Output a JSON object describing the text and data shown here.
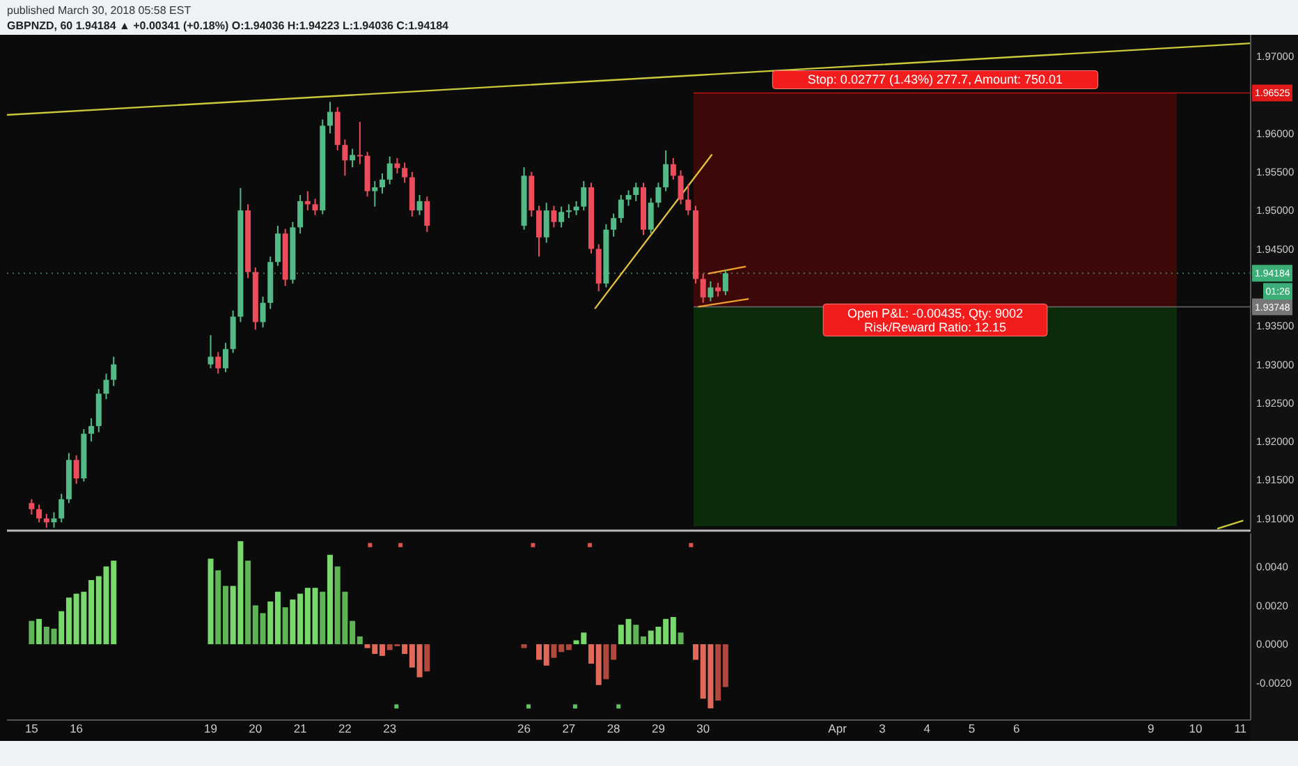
{
  "chart_data": [
    {
      "type": "candlestick",
      "title": "published March 30, 2018 05:58 EST",
      "subtitle": "GBPNZD, 60 1.94184 ▲ +0.00341 (+0.18%) O:1.94036 H:1.94223 L:1.94036 C:1.94184",
      "x": [
        "2018-03-15T00:00",
        "2018-03-15T04:00",
        "2018-03-15T08:00",
        "2018-03-15T12:00",
        "2018-03-15T16:00",
        "2018-03-15T20:00",
        "2018-03-16T00:00",
        "2018-03-16T04:00",
        "2018-03-16T08:00",
        "2018-03-16T12:00",
        "2018-03-16T16:00",
        "2018-03-16T20:00",
        "2018-03-19T00:00",
        "2018-03-19T04:00",
        "2018-03-19T08:00",
        "2018-03-19T12:00",
        "2018-03-19T16:00",
        "2018-03-19T20:00",
        "2018-03-20T00:00",
        "2018-03-20T04:00",
        "2018-03-20T08:00",
        "2018-03-20T12:00",
        "2018-03-20T16:00",
        "2018-03-20T20:00",
        "2018-03-21T00:00",
        "2018-03-21T04:00",
        "2018-03-21T08:00",
        "2018-03-21T12:00",
        "2018-03-21T16:00",
        "2018-03-21T20:00",
        "2018-03-22T00:00",
        "2018-03-22T04:00",
        "2018-03-22T08:00",
        "2018-03-22T12:00",
        "2018-03-22T16:00",
        "2018-03-22T20:00",
        "2018-03-23T00:00",
        "2018-03-23T04:00",
        "2018-03-23T08:00",
        "2018-03-23T12:00",
        "2018-03-23T16:00",
        "2018-03-23T20:00",
        "2018-03-26T00:00",
        "2018-03-26T04:00",
        "2018-03-26T08:00",
        "2018-03-26T12:00",
        "2018-03-26T16:00",
        "2018-03-26T20:00",
        "2018-03-27T00:00",
        "2018-03-27T04:00",
        "2018-03-27T08:00",
        "2018-03-27T12:00",
        "2018-03-27T16:00",
        "2018-03-27T20:00",
        "2018-03-28T00:00",
        "2018-03-28T04:00",
        "2018-03-28T08:00",
        "2018-03-28T12:00",
        "2018-03-28T16:00",
        "2018-03-28T20:00",
        "2018-03-29T00:00",
        "2018-03-29T04:00",
        "2018-03-29T08:00",
        "2018-03-29T12:00",
        "2018-03-29T16:00",
        "2018-03-29T20:00",
        "2018-03-30T00:00",
        "2018-03-30T04:00",
        "2018-03-30T08:00",
        "2018-03-30T12:00"
      ],
      "ohlc": [
        [
          1.912,
          1.9125,
          1.9105,
          1.9112
        ],
        [
          1.9112,
          1.9118,
          1.9095,
          1.91
        ],
        [
          1.91,
          1.9106,
          1.9088,
          1.9095
        ],
        [
          1.9095,
          1.9108,
          1.9088,
          1.91
        ],
        [
          1.91,
          1.9132,
          1.9095,
          1.9125
        ],
        [
          1.9125,
          1.9185,
          1.912,
          1.9176
        ],
        [
          1.9176,
          1.9182,
          1.9145,
          1.9152
        ],
        [
          1.9152,
          1.9216,
          1.9148,
          1.921
        ],
        [
          1.921,
          1.923,
          1.92,
          1.922
        ],
        [
          1.922,
          1.9268,
          1.9212,
          1.9262
        ],
        [
          1.9262,
          1.9288,
          1.9255,
          1.928
        ],
        [
          1.928,
          1.931,
          1.9272,
          1.93
        ],
        [
          1.93,
          1.9338,
          1.9295,
          1.931
        ],
        [
          1.931,
          1.9316,
          1.9288,
          1.9295
        ],
        [
          1.9295,
          1.9328,
          1.929,
          1.932
        ],
        [
          1.932,
          1.937,
          1.9315,
          1.9362
        ],
        [
          1.9362,
          1.9529,
          1.9355,
          1.95
        ],
        [
          1.95,
          1.9508,
          1.9412,
          1.942
        ],
        [
          1.942,
          1.9426,
          1.9345,
          1.9355
        ],
        [
          1.9355,
          1.9388,
          1.9348,
          1.938
        ],
        [
          1.938,
          1.944,
          1.9372,
          1.9433
        ],
        [
          1.9433,
          1.948,
          1.9428,
          1.947
        ],
        [
          1.947,
          1.9476,
          1.9402,
          1.941
        ],
        [
          1.941,
          1.9485,
          1.9405,
          1.9478
        ],
        [
          1.9478,
          1.952,
          1.947,
          1.9512
        ],
        [
          1.9512,
          1.9525,
          1.95,
          1.9508
        ],
        [
          1.9508,
          1.9515,
          1.9494,
          1.95
        ],
        [
          1.95,
          1.9618,
          1.9495,
          1.961
        ],
        [
          1.961,
          1.9641,
          1.96,
          1.9628
        ],
        [
          1.9628,
          1.9634,
          1.9578,
          1.9585
        ],
        [
          1.9585,
          1.9592,
          1.9545,
          1.9565
        ],
        [
          1.9565,
          1.958,
          1.9556,
          1.9572
        ],
        [
          1.9572,
          1.9615,
          1.956,
          1.9571
        ],
        [
          1.9571,
          1.9576,
          1.9518,
          1.9525
        ],
        [
          1.9525,
          1.9538,
          1.9505,
          1.953
        ],
        [
          1.953,
          1.9548,
          1.9522,
          1.954
        ],
        [
          1.954,
          1.957,
          1.9534,
          1.9561
        ],
        [
          1.9561,
          1.9568,
          1.9548,
          1.9555
        ],
        [
          1.9555,
          1.9562,
          1.9536,
          1.9543
        ],
        [
          1.9543,
          1.955,
          1.9492,
          1.95
        ],
        [
          1.95,
          1.952,
          1.9494,
          1.9512
        ],
        [
          1.9512,
          1.9518,
          1.9472,
          1.948
        ],
        [
          1.948,
          1.9556,
          1.9475,
          1.9545
        ],
        [
          1.9545,
          1.955,
          1.9492,
          1.95
        ],
        [
          1.95,
          1.9506,
          1.944,
          1.9465
        ],
        [
          1.9465,
          1.951,
          1.9458,
          1.95
        ],
        [
          1.95,
          1.9506,
          1.9478,
          1.9485
        ],
        [
          1.9485,
          1.9505,
          1.9478,
          1.9498
        ],
        [
          1.9498,
          1.9508,
          1.949,
          1.95
        ],
        [
          1.95,
          1.9512,
          1.9494,
          1.9505
        ],
        [
          1.9505,
          1.9538,
          1.95,
          1.953
        ],
        [
          1.953,
          1.9536,
          1.9444,
          1.945
        ],
        [
          1.945,
          1.9456,
          1.9395,
          1.9405
        ],
        [
          1.9405,
          1.9482,
          1.94,
          1.9475
        ],
        [
          1.9475,
          1.9496,
          1.9466,
          1.949
        ],
        [
          1.949,
          1.952,
          1.9484,
          1.9514
        ],
        [
          1.9514,
          1.9526,
          1.9506,
          1.952
        ],
        [
          1.952,
          1.9536,
          1.9512,
          1.953
        ],
        [
          1.953,
          1.9536,
          1.9468,
          1.9475
        ],
        [
          1.9475,
          1.9516,
          1.947,
          1.951
        ],
        [
          1.951,
          1.9536,
          1.9504,
          1.953
        ],
        [
          1.953,
          1.9578,
          1.9525,
          1.956
        ],
        [
          1.956,
          1.9568,
          1.954,
          1.9545
        ],
        [
          1.9545,
          1.9552,
          1.9508,
          1.9514
        ],
        [
          1.9514,
          1.9534,
          1.9494,
          1.95
        ],
        [
          1.95,
          1.9506,
          1.9405,
          1.9411
        ],
        [
          1.9411,
          1.9418,
          1.938,
          1.9387
        ],
        [
          1.9387,
          1.9408,
          1.9382,
          1.94
        ],
        [
          1.94,
          1.9406,
          1.9388,
          1.9395
        ],
        [
          1.9395,
          1.9423,
          1.939,
          1.94184
        ]
      ],
      "series": [
        {
          "type": "line",
          "x": [
            "2018-03-14T10:48",
            "2018-04-11T05:31"
          ],
          "values": [
            1.9624,
            1.9717
          ],
          "color": "#c9c93a"
        },
        {
          "type": "line",
          "x": [
            "2018-03-27T14:10",
            "2018-03-30T04:34"
          ],
          "values": [
            1.9373,
            1.9572
          ],
          "color": "#e3c040"
        },
        {
          "type": "line",
          "x": [
            "2018-03-30T02:53",
            "2018-03-30T22:34"
          ],
          "values": [
            1.9418,
            1.9427
          ],
          "color": "#f0a030"
        },
        {
          "type": "line",
          "x": [
            "2018-03-29T21:36",
            "2018-03-31T00:00"
          ],
          "values": [
            1.9375,
            1.9385
          ],
          "color": "#f0a030"
        },
        {
          "type": "line",
          "x": [
            "2018-04-10T12:00",
            "2018-04-11T01:12"
          ],
          "values": [
            1.9087,
            1.9097
          ],
          "color": "#c9c93a"
        }
      ],
      "bands": [
        {
          "axis": "y",
          "from": 1.93748,
          "to": 1.96525,
          "color": "#3c0808",
          "label": "Stop: 0.02777 (1.43%) 277.7, Amount: 750.01"
        },
        {
          "axis": "y",
          "from": 1.909,
          "to": 1.93748,
          "color": "#0b2b0b",
          "label": "Open P&L: -0.00435, Qty: 9002\nRisk/Reward Ratio: 12.15"
        }
      ],
      "ref_lines": [
        {
          "axis": "y",
          "value": 1.96525,
          "label": "1.96525",
          "color": "#e01818",
          "line_style": "solid"
        },
        {
          "axis": "y",
          "value": 1.94184,
          "label": "1.94184",
          "color": "#3cae78",
          "line_style": "dotted"
        },
        {
          "axis": "y",
          "value": 1.93748,
          "label": "1.93748",
          "color": "#777777",
          "line_style": "solid"
        }
      ],
      "annotations": [
        "01:26"
      ],
      "xlim": [
        "2018-03-14T10:48",
        "2018-04-11T05:31"
      ],
      "ylim": [
        1.9086,
        1.9728
      ],
      "yticks": [
        {
          "value": 1.91,
          "label": "1.91000"
        },
        {
          "value": 1.915,
          "label": "1.91500"
        },
        {
          "value": 1.92,
          "label": "1.92000"
        },
        {
          "value": 1.925,
          "label": "1.92500"
        },
        {
          "value": 1.93,
          "label": "1.93000"
        },
        {
          "value": 1.935,
          "label": "1.93500"
        },
        {
          "value": 1.945,
          "label": "1.94500"
        },
        {
          "value": 1.95,
          "label": "1.95000"
        },
        {
          "value": 1.955,
          "label": "1.95500"
        },
        {
          "value": 1.96,
          "label": "1.96000"
        },
        {
          "value": 1.97,
          "label": "1.97000"
        }
      ],
      "tick_labels": "y"
    },
    {
      "type": "bar",
      "x": [
        "2018-03-15T00:00",
        "2018-03-15T04:00",
        "2018-03-15T08:00",
        "2018-03-15T12:00",
        "2018-03-15T16:00",
        "2018-03-15T20:00",
        "2018-03-16T00:00",
        "2018-03-16T04:00",
        "2018-03-16T08:00",
        "2018-03-16T12:00",
        "2018-03-16T16:00",
        "2018-03-16T20:00",
        "2018-03-19T00:00",
        "2018-03-19T04:00",
        "2018-03-19T08:00",
        "2018-03-19T12:00",
        "2018-03-19T16:00",
        "2018-03-19T20:00",
        "2018-03-20T00:00",
        "2018-03-20T04:00",
        "2018-03-20T08:00",
        "2018-03-20T12:00",
        "2018-03-20T16:00",
        "2018-03-20T20:00",
        "2018-03-21T00:00",
        "2018-03-21T04:00",
        "2018-03-21T08:00",
        "2018-03-21T12:00",
        "2018-03-21T16:00",
        "2018-03-21T20:00",
        "2018-03-22T00:00",
        "2018-03-22T04:00",
        "2018-03-22T08:00",
        "2018-03-22T12:00",
        "2018-03-22T16:00",
        "2018-03-22T20:00",
        "2018-03-23T00:00",
        "2018-03-23T04:00",
        "2018-03-23T08:00",
        "2018-03-23T12:00",
        "2018-03-23T16:00",
        "2018-03-23T20:00",
        "2018-03-26T00:00",
        "2018-03-26T04:00",
        "2018-03-26T08:00",
        "2018-03-26T12:00",
        "2018-03-26T16:00",
        "2018-03-26T20:00",
        "2018-03-27T00:00",
        "2018-03-27T04:00",
        "2018-03-27T08:00",
        "2018-03-27T12:00",
        "2018-03-27T16:00",
        "2018-03-27T20:00",
        "2018-03-28T00:00",
        "2018-03-28T04:00",
        "2018-03-28T08:00",
        "2018-03-28T12:00",
        "2018-03-28T16:00",
        "2018-03-28T20:00",
        "2018-03-29T00:00",
        "2018-03-29T04:00",
        "2018-03-29T08:00",
        "2018-03-29T12:00",
        "2018-03-29T16:00",
        "2018-03-29T20:00",
        "2018-03-30T00:00",
        "2018-03-30T04:00",
        "2018-03-30T08:00",
        "2018-03-30T12:00"
      ],
      "values": [
        0.0012,
        0.0013,
        0.0009,
        0.0008,
        0.0017,
        0.0024,
        0.0026,
        0.0027,
        0.0033,
        0.0035,
        0.004,
        0.0043,
        0.0044,
        0.0038,
        0.003,
        0.003,
        0.0053,
        0.0043,
        0.002,
        0.0016,
        0.0022,
        0.0027,
        0.0019,
        0.0023,
        0.0026,
        0.0029,
        0.0029,
        0.0027,
        0.0046,
        0.004,
        0.0027,
        0.0012,
        0.0004,
        -0.0002,
        -0.0005,
        -0.0006,
        -0.0003,
        -0.0001,
        -0.0005,
        -0.0012,
        -0.0017,
        -0.0014,
        -0.0002,
        0.0,
        -0.0008,
        -0.0011,
        -0.0007,
        -0.0004,
        -0.0003,
        0.0002,
        0.0006,
        -0.001,
        -0.0021,
        -0.0018,
        -0.0008,
        0.001,
        0.0013,
        0.001,
        0.0004,
        0.0007,
        0.0009,
        0.0013,
        0.0014,
        0.0006,
        0.0,
        -0.0008,
        -0.0028,
        -0.0033,
        -0.0029,
        -0.0022
      ],
      "colors": [
        "#5fb455",
        "#76d96a",
        "#5fb455",
        "#5fb455",
        "#76d96a",
        "#76d96a",
        "#76d96a",
        "#76d96a",
        "#76d96a",
        "#76d96a",
        "#76d96a",
        "#76d96a",
        "#76d96a",
        "#5fb455",
        "#5fb455",
        "#76d96a",
        "#76d96a",
        "#5fb455",
        "#5fb455",
        "#5fb455",
        "#76d96a",
        "#76d96a",
        "#5fb455",
        "#76d96a",
        "#76d96a",
        "#76d96a",
        "#76d96a",
        "#5fb455",
        "#76d96a",
        "#5fb455",
        "#5fb455",
        "#5fb455",
        "#5fb455",
        "#e0695a",
        "#e0695a",
        "#e0695a",
        "#b0483e",
        "#b0483e",
        "#e0695a",
        "#e0695a",
        "#e0695a",
        "#b0483e",
        "#b0483e",
        "#5fb455",
        "#e0695a",
        "#e0695a",
        "#b0483e",
        "#b0483e",
        "#b0483e",
        "#76d96a",
        "#76d96a",
        "#e0695a",
        "#e0695a",
        "#b0483e",
        "#b0483e",
        "#76d96a",
        "#76d96a",
        "#5fb455",
        "#5fb455",
        "#76d96a",
        "#76d96a",
        "#76d96a",
        "#76d96a",
        "#5fb455",
        "#5fb455",
        "#e0695a",
        "#e0695a",
        "#e0695a",
        "#b0483e",
        "#b0483e"
      ],
      "series": [
        {
          "type": "scatter",
          "marker": "square",
          "x": [
            "2018-03-22T13:26",
            "2018-03-23T05:46",
            "2018-03-26T04:48",
            "2018-03-27T11:17",
            "2018-03-29T17:31"
          ],
          "values": [
            0.0051,
            0.0051,
            0.0051,
            0.0051,
            0.0051
          ],
          "color": "#e0504a"
        },
        {
          "type": "scatter",
          "marker": "square",
          "x": [
            "2018-03-23T03:36",
            "2018-03-26T02:24",
            "2018-03-27T03:22",
            "2018-03-28T02:38"
          ],
          "values": [
            -0.0032,
            -0.0032,
            -0.0032,
            -0.0032
          ],
          "color": "#5cc45c"
        }
      ],
      "xlim": [
        "2018-03-14T10:48",
        "2018-04-11T05:31"
      ],
      "xticks": [
        {
          "value": "2018-03-15",
          "label": "15"
        },
        {
          "value": "2018-03-16",
          "label": "16"
        },
        {
          "value": "2018-03-19",
          "label": "19"
        },
        {
          "value": "2018-03-20",
          "label": "20"
        },
        {
          "value": "2018-03-21",
          "label": "21"
        },
        {
          "value": "2018-03-22",
          "label": "22"
        },
        {
          "value": "2018-03-23",
          "label": "23"
        },
        {
          "value": "2018-03-26",
          "label": "26"
        },
        {
          "value": "2018-03-27",
          "label": "27"
        },
        {
          "value": "2018-03-28",
          "label": "28"
        },
        {
          "value": "2018-03-29",
          "label": "29"
        },
        {
          "value": "2018-03-30",
          "label": "30"
        },
        {
          "value": "2018-04-02",
          "label": "Apr"
        },
        {
          "value": "2018-04-03",
          "label": "3"
        },
        {
          "value": "2018-04-04",
          "label": "4"
        },
        {
          "value": "2018-04-05",
          "label": "5"
        },
        {
          "value": "2018-04-06",
          "label": "6"
        },
        {
          "value": "2018-04-09",
          "label": "9"
        },
        {
          "value": "2018-04-10",
          "label": "10"
        },
        {
          "value": "2018-04-11",
          "label": "11"
        }
      ],
      "ylim": [
        -0.0039,
        0.0057
      ],
      "yticks": [
        {
          "value": -0.002,
          "label": "-0.0020"
        },
        {
          "value": 0,
          "label": "0.0000"
        },
        {
          "value": 0.002,
          "label": "0.0020"
        },
        {
          "value": 0.004,
          "label": "0.0040"
        }
      ]
    }
  ]
}
